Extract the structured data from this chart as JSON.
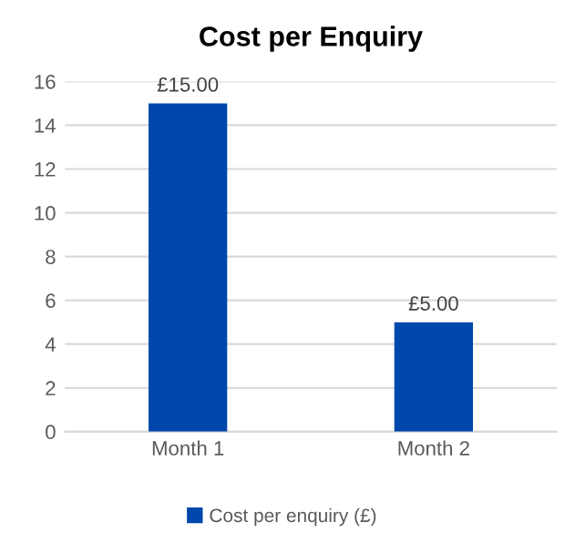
{
  "chart_data": {
    "type": "bar",
    "title": "Cost per Enquiry",
    "categories": [
      "Month 1",
      "Month 2"
    ],
    "series": [
      {
        "name": "Cost per enquiry (£)",
        "color": "#0047ab",
        "values": [
          15,
          5
        ],
        "value_labels": [
          "£15.00",
          "£5.00"
        ]
      }
    ],
    "ylim": [
      0,
      16
    ],
    "yticks": [
      0,
      2,
      4,
      6,
      8,
      10,
      12,
      14,
      16
    ],
    "grid": "y",
    "legend": "bottom"
  }
}
